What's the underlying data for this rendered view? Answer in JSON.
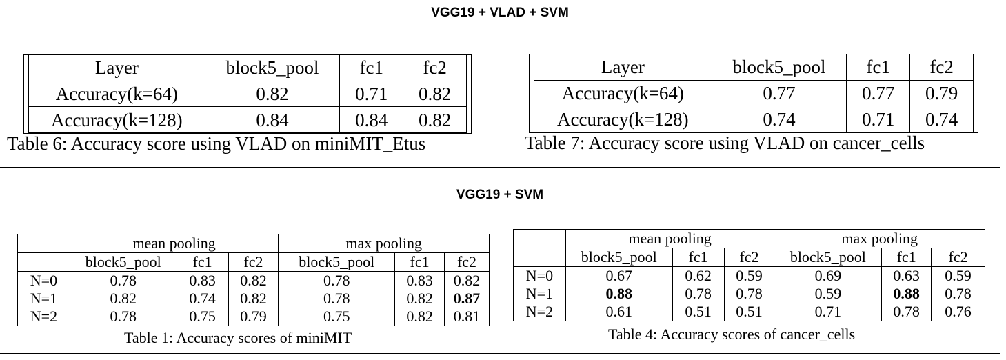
{
  "sections": {
    "vlad_title": "VGG19 + VLAD + SVM",
    "svm_title": "VGG19 + SVM"
  },
  "table6": {
    "header": [
      "Layer",
      "block5_pool",
      "fc1",
      "fc2"
    ],
    "rows": [
      [
        "Accuracy(k=64)",
        "0.82",
        "0.71",
        "0.82"
      ],
      [
        "Accuracy(k=128)",
        "0.84",
        "0.84",
        "0.82"
      ]
    ],
    "caption": "Table 6: Accuracy score using VLAD on miniMIT_Etus"
  },
  "table7": {
    "header": [
      "Layer",
      "block5_pool",
      "fc1",
      "fc2"
    ],
    "rows": [
      [
        "Accuracy(k=64)",
        "0.77",
        "0.77",
        "0.79"
      ],
      [
        "Accuracy(k=128)",
        "0.74",
        "0.71",
        "0.74"
      ]
    ],
    "caption": "Table 7: Accuracy score using VLAD on cancer_cells"
  },
  "table1": {
    "groups": [
      "mean pooling",
      "max pooling"
    ],
    "subheader": [
      "block5_pool",
      "fc1",
      "fc2",
      "block5_pool",
      "fc1",
      "fc2"
    ],
    "rows": [
      {
        "label": "N=0",
        "values": [
          "0.78",
          "0.83",
          "0.82",
          "0.78",
          "0.83",
          "0.82"
        ]
      },
      {
        "label": "N=1",
        "values": [
          "0.82",
          "0.74",
          "0.82",
          "0.78",
          "0.82",
          "0.87"
        ]
      },
      {
        "label": "N=2",
        "values": [
          "0.78",
          "0.75",
          "0.79",
          "0.75",
          "0.82",
          "0.81"
        ]
      }
    ],
    "caption": "Table 1: Accuracy scores of miniMIT"
  },
  "table4": {
    "groups": [
      "mean pooling",
      "max pooling"
    ],
    "subheader": [
      "block5_pool",
      "fc1",
      "fc2",
      "block5_pool",
      "fc1",
      "fc2"
    ],
    "rows": [
      {
        "label": "N=0",
        "values": [
          "0.67",
          "0.62",
          "0.59",
          "0.69",
          "0.63",
          "0.59"
        ]
      },
      {
        "label": "N=1",
        "values": [
          "0.88",
          "0.78",
          "0.78",
          "0.59",
          "0.88",
          "0.78"
        ]
      },
      {
        "label": "N=2",
        "values": [
          "0.61",
          "0.51",
          "0.51",
          "0.71",
          "0.78",
          "0.76"
        ]
      }
    ],
    "caption": "Table 4: Accuracy scores of cancer_cells"
  }
}
